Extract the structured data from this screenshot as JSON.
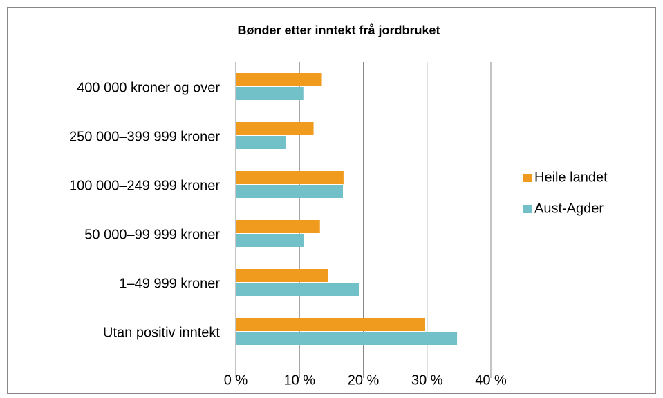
{
  "chart_data": {
    "type": "barh",
    "title": "Bønder etter inntekt frå jordbruket",
    "categories": [
      "400 000 kroner og over",
      "250 000–399 999 kroner",
      "100 000–249 999 kroner",
      "50 000–99 999 kroner",
      "1–49 999 kroner",
      "Utan positiv inntekt"
    ],
    "series": [
      {
        "name": "Heile landet",
        "color": "#f09a1e",
        "values": [
          13.5,
          12.2,
          16.9,
          13.2,
          14.5,
          29.7
        ]
      },
      {
        "name": "Aust-Agder",
        "color": "#72c1c8",
        "values": [
          10.6,
          7.8,
          16.8,
          10.7,
          19.4,
          34.7
        ]
      }
    ],
    "xlim": [
      0,
      40
    ],
    "xticks": [
      {
        "value": 0,
        "label": "0 %"
      },
      {
        "value": 10,
        "label": "10 %"
      },
      {
        "value": 20,
        "label": "20 %"
      },
      {
        "value": 30,
        "label": "30 %"
      },
      {
        "value": 40,
        "label": "40 %"
      }
    ],
    "grid": true,
    "legend": "right"
  }
}
